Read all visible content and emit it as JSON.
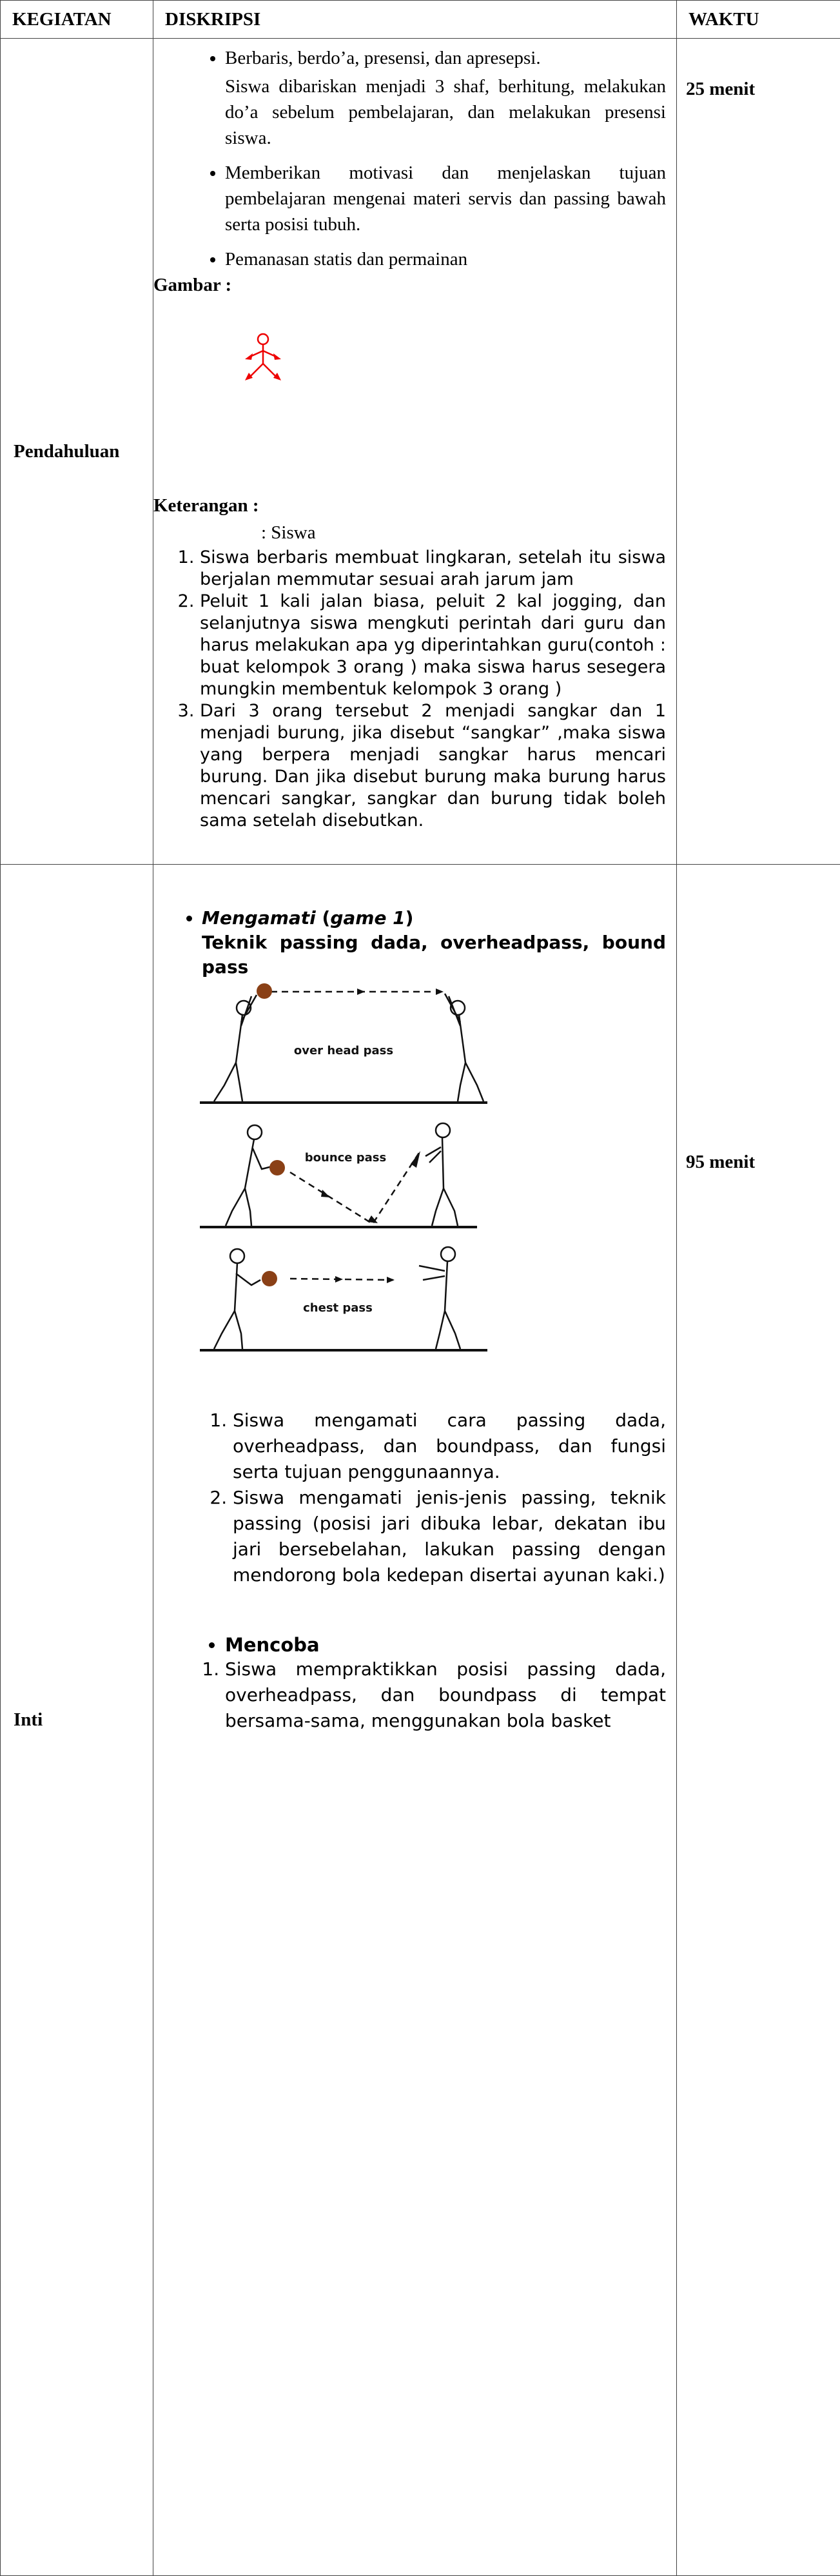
{
  "table": {
    "headers": [
      "KEGIATAN",
      "DISKRIPSI",
      "WAKTU"
    ],
    "rows": [
      {
        "kegiatan": "Pendahuluan",
        "waktu": "25 menit",
        "diskripsi": {
          "bullets": [
            {
              "text": "Berbaris, berdo’a, presensi, dan apresepsi.",
              "note": "Siswa dibariskan menjadi 3 shaf, berhitung, melakukan do’a sebelum pembelajaran, dan melakukan presensi siswa."
            },
            {
              "text": "Memberikan motivasi dan menjelaskan tujuan pembelajaran mengenai materi servis dan passing bawah serta posisi tubuh."
            },
            {
              "text": "Pemanasan statis dan permainan"
            }
          ],
          "figure_label": "Gambar :",
          "legend_label": "Keterangan :",
          "legend_item": ": Siswa",
          "steps": [
            "Siswa berbaris membuat lingkaran, setelah itu siswa berjalan memmutar sesuai arah jarum jam",
            "Peluit 1 kali jalan biasa, peluit 2 kal jogging, dan selanjutnya siswa mengkuti perintah dari guru dan harus melakukan apa yg diperintahkan guru(contoh : buat kelompok 3 orang ) maka siswa harus sesegera mungkin membentuk kelompok 3 orang )",
            "Dari 3 orang tersebut 2 menjadi sangkar dan 1 menjadi burung, jika disebut “sangkar” ,maka siswa yang berpera menjadi sangkar harus mencari burung. Dan jika disebut burung maka burung harus mencari sangkar, sangkar dan burung tidak boleh sama setelah disebutkan."
          ]
        }
      },
      {
        "kegiatan": "Inti",
        "waktu": "95 menit",
        "diskripsi": {
          "heading_parts": [
            "Mengamati",
            "(",
            "game 1",
            ")"
          ],
          "subheading": "Teknik passing dada, overheadpass, bound pass",
          "image_labels": [
            "over head pass",
            "bounce pass",
            "chest pass"
          ],
          "steps": [
            "Siswa mengamati cara passing dada, overheadpass, dan boundpass, dan fungsi serta tujuan penggunaannya.",
            "Siswa mengamati jenis-jenis passing, teknik passing (posisi jari dibuka lebar, dekatan ibu jari bersebelahan, lakukan passing dengan mendorong bola kedepan disertai ayunan kaki.)"
          ],
          "section2": "Mencoba",
          "steps2": [
            "Siswa mempraktikkan posisi passing dada, overheadpass, dan boundpass di tempat bersama-sama, menggunakan bola basket"
          ]
        }
      }
    ]
  }
}
